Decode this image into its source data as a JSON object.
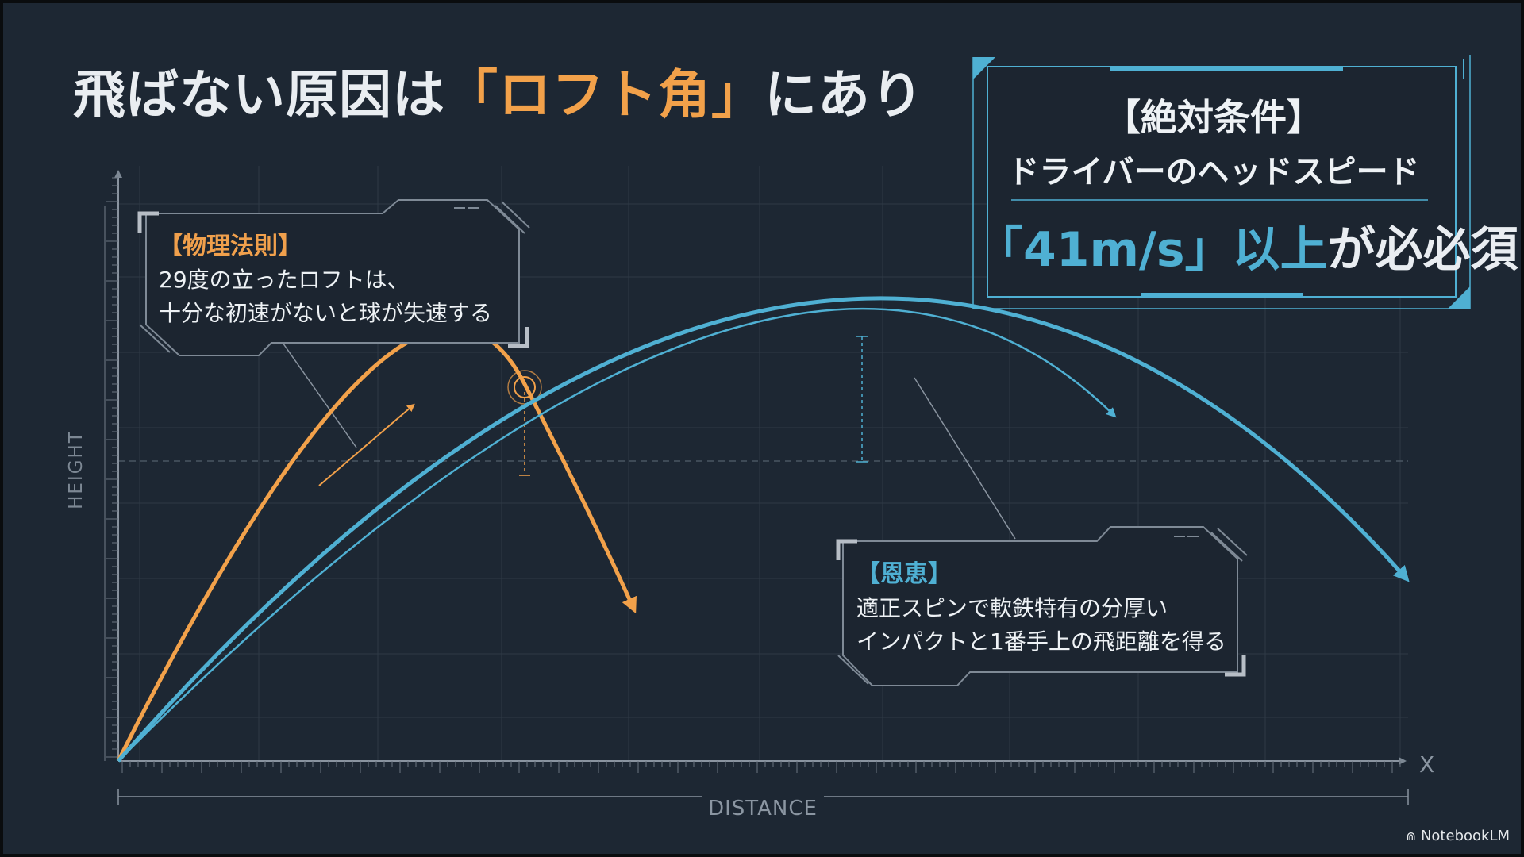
{
  "slide": {
    "title": {
      "before": "飛ばない原因は",
      "highlight": "「ロフト角」",
      "after": "にあり"
    },
    "physics_callout": {
      "tag": "【物理法則】",
      "line1": "29度の立ったロフトは、",
      "line2": "十分な初速がないと球が失速する"
    },
    "requirement_box": {
      "title": "【絶対条件】",
      "subtitle": "ドライバーのヘッドスピード",
      "value_highlight": "「41m/s」以上",
      "value_rest": "が必必須"
    },
    "benefit_callout": {
      "tag": "【恩恵】",
      "line1": "適正スピンで軟鉄特有の分厚い",
      "line2": "インパクトと1番手上の飛距離を得る"
    },
    "axes": {
      "y_label": "HEIGHT",
      "x_label": "DISTANCE",
      "x_end": "X"
    },
    "colors": {
      "background": "#1d2733",
      "accent_orange": "#f2a14a",
      "accent_blue": "#4fb0d3",
      "text": "#eef2f5",
      "grid": "#34404c"
    },
    "branding": {
      "icon": "notebooklm-logo-icon",
      "label": "NotebookLM"
    }
  }
}
